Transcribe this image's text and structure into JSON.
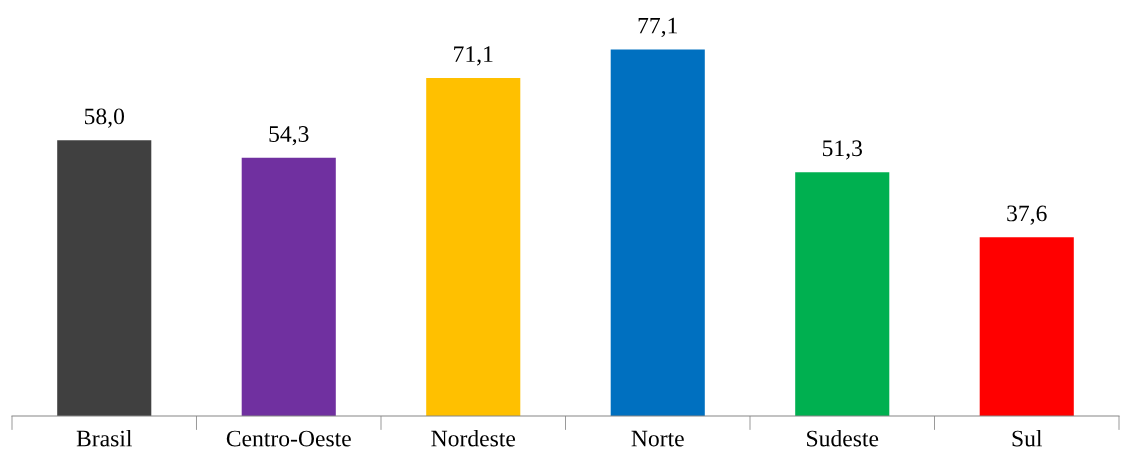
{
  "chart_data": {
    "type": "bar",
    "categories": [
      "Brasil",
      "Centro-Oeste",
      "Nordeste",
      "Norte",
      "Sudeste",
      "Sul"
    ],
    "values": [
      58.0,
      54.3,
      71.1,
      77.1,
      51.3,
      37.6
    ],
    "colors": [
      "#404040",
      "#7030a0",
      "#ffc000",
      "#0070c0",
      "#00b050",
      "#ff0000"
    ],
    "value_labels": [
      "58,0",
      "54,3",
      "71,1",
      "77,1",
      "51,3",
      "37,6"
    ]
  }
}
